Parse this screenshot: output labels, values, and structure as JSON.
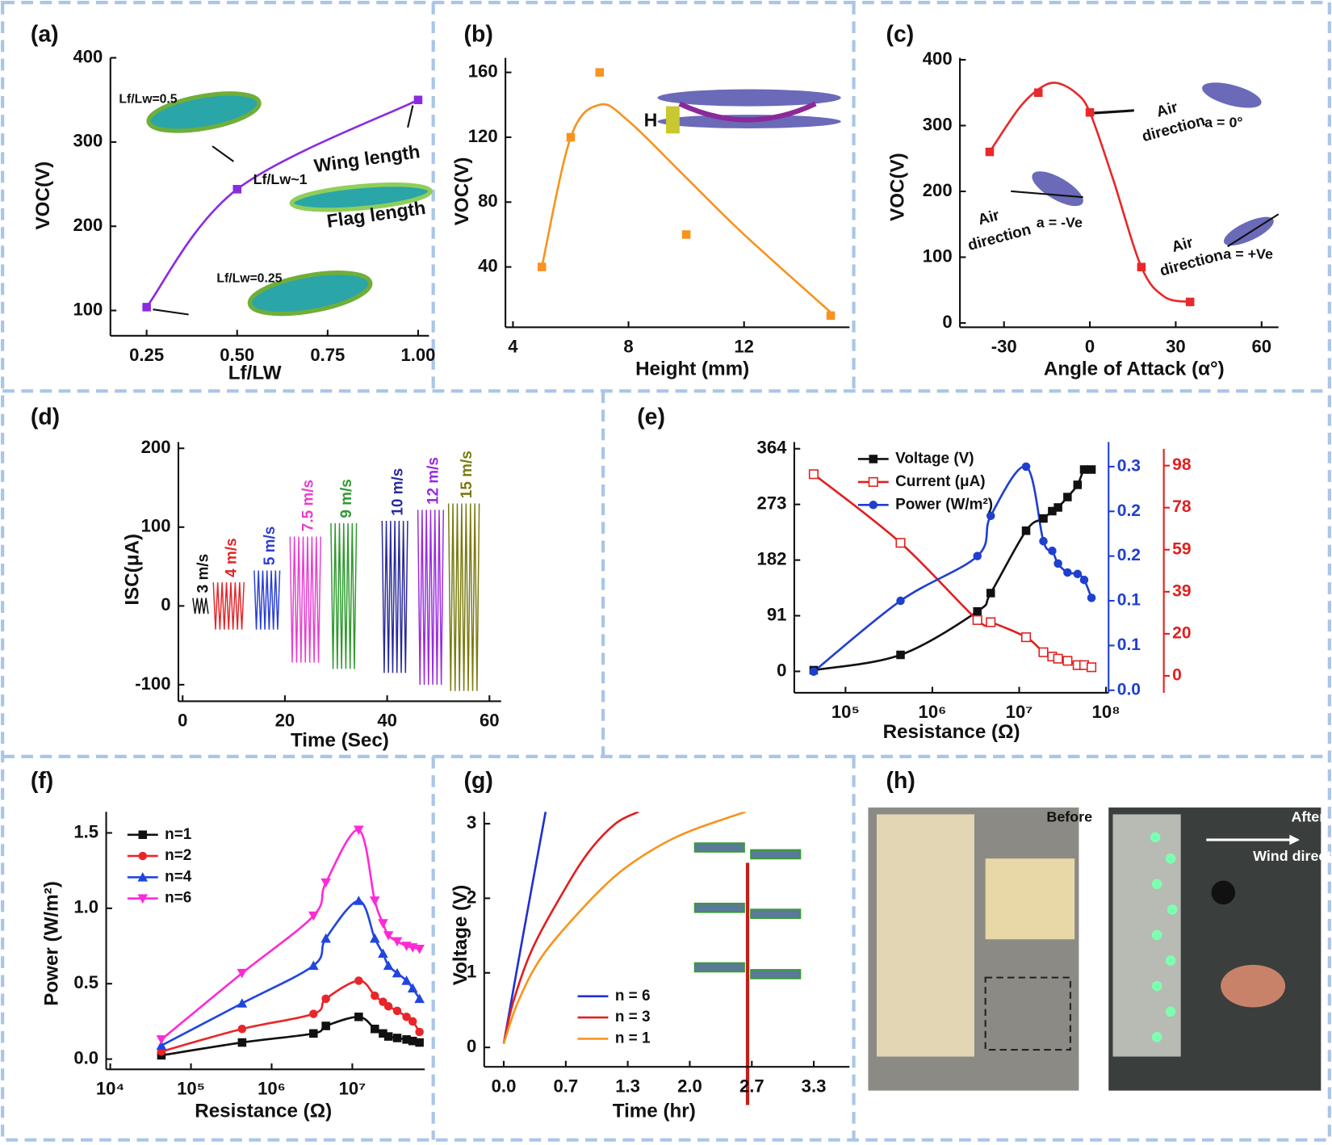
{
  "chart_data": [
    {
      "type": "scatter",
      "panel": "(a)",
      "smooth": true,
      "marker": "square",
      "color": "#8a2be2",
      "xlabel": "Lf/LW",
      "ylabel": "VOC(V)",
      "x": [
        0.25,
        0.5,
        1.0
      ],
      "values": [
        104,
        244,
        350
      ],
      "xlim": [
        0.15,
        1.03
      ],
      "ylim": [
        70,
        400
      ],
      "xticks": [
        0.25,
        {
          "value": 0.5,
          "label": "0.50"
        },
        0.75,
        {
          "value": 1,
          "label": "1.00"
        }
      ],
      "yticks": [
        100,
        200,
        300,
        400
      ],
      "annotations": [
        "Lf/Lw=0.5",
        "Lf/Lw~1",
        "Wing length",
        "Flag length",
        "Lf/Lw=0.25"
      ]
    },
    {
      "type": "scatter",
      "panel": "(b)",
      "marker": "square",
      "color": "#f7931e",
      "xlabel": "Height (mm)",
      "ylabel": "VOC(V)",
      "x": [
        5,
        6,
        7,
        10,
        15
      ],
      "values": [
        40,
        120,
        160,
        60,
        10
      ],
      "fit": {
        "x": [
          5,
          6,
          7,
          8,
          10,
          12,
          15
        ],
        "values": [
          40,
          120,
          140,
          130,
          95,
          60,
          12
        ]
      },
      "xlim": [
        3.74,
        15.65
      ],
      "ylim": [
        2.8,
        169
      ],
      "xticks": [
        4,
        8,
        12
      ],
      "yticks": [
        40,
        80,
        120,
        160
      ],
      "annotations": [
        "H"
      ]
    },
    {
      "type": "scatter",
      "panel": "(c)",
      "marker": "square",
      "color": "#e8282b",
      "xlabel": "Angle of Attack (α°)",
      "ylabel": "VOC(V)",
      "x": [
        -35,
        -18,
        0,
        18,
        35
      ],
      "values": [
        260,
        350,
        320,
        85,
        32
      ],
      "fit": {
        "x": [
          -35,
          -25,
          -18,
          -12,
          -5,
          0,
          8,
          18,
          26,
          35
        ],
        "values": [
          260,
          325,
          355,
          365,
          350,
          320,
          220,
          85,
          40,
          32
        ]
      },
      "xlim": [
        -45.4,
        65.9
      ],
      "ylim": [
        -6.5,
        403
      ],
      "xticks": [
        -30,
        0,
        30,
        60
      ],
      "yticks": [
        0,
        100,
        200,
        300,
        400
      ],
      "annotations": [
        "Air",
        "direction",
        "a = 0°",
        "Air",
        "direction",
        "a = -Ve",
        "Air",
        "direction",
        "a = +Ve"
      ]
    },
    {
      "type": "oscillation",
      "panel": "(d)",
      "xlabel": "Time (Sec)",
      "ylabel": "ISC(μA)",
      "xlim": [
        -0.83,
        62.3
      ],
      "ylim": [
        -121,
        208
      ],
      "xticks": [
        0,
        20,
        40,
        60
      ],
      "yticks": [
        -100,
        0,
        100,
        200
      ],
      "series": [
        {
          "name": "3 m/s",
          "color": "#111111",
          "x": [
            2,
            5
          ],
          "max": 10,
          "min": -10
        },
        {
          "name": "4 m/s",
          "color": "#e3262a",
          "x": [
            6,
            12
          ],
          "max": 30,
          "min": -30
        },
        {
          "name": "5 m/s",
          "color": "#2a3fd6",
          "x": [
            14,
            19
          ],
          "max": 45,
          "min": -30
        },
        {
          "name": "7.5 m/s",
          "color": "#e83fd0",
          "x": [
            21,
            27
          ],
          "max": 88,
          "min": -72
        },
        {
          "name": "9 m/s",
          "color": "#2f9a2f",
          "x": [
            29,
            34
          ],
          "max": 105,
          "min": -80
        },
        {
          "name": "10 m/s",
          "color": "#2a2a9a",
          "x": [
            39,
            44
          ],
          "max": 108,
          "min": -85
        },
        {
          "name": "12 m/s",
          "color": "#9a2ae0",
          "x": [
            46,
            51
          ],
          "max": 122,
          "min": -100
        },
        {
          "name": "15 m/s",
          "color": "#7a7a10",
          "x": [
            52,
            58
          ],
          "max": 130,
          "min": -108
        }
      ]
    },
    {
      "type": "line",
      "panel": "(e)",
      "xscale": "log",
      "xlabel": "Resistance (Ω)",
      "x": [
        43000,
        430000,
        3300000,
        4700000,
        12000000,
        19000000,
        24000000,
        28000000,
        36000000,
        47000000,
        56000000,
        68000000
      ],
      "xlim": [
        25700,
        107000000
      ],
      "ylim": [
        -35,
        375
      ],
      "y2lim": [
        -0.0034,
        0.333
      ],
      "y3lim": [
        -7.9,
        109
      ],
      "xticks": [
        {
          "value": 100000,
          "label": "10⁵"
        },
        {
          "value": 1000000,
          "label": "10⁶"
        },
        {
          "value": 10000000,
          "label": "10⁷"
        },
        {
          "value": 100000000,
          "label": "10⁸"
        }
      ],
      "yticks": [
        0,
        91,
        182,
        273,
        364
      ],
      "y2ticks": [
        {
          "value": 0,
          "label": "0.0"
        },
        {
          "value": 0.06,
          "label": "0.1"
        },
        {
          "value": 0.12,
          "label": "0.1"
        },
        {
          "value": 0.18,
          "label": "0.2"
        },
        {
          "value": 0.24,
          "label": "0.2"
        },
        0.3
      ],
      "y3ticks": [
        0,
        {
          "value": 19.6,
          "label": "20"
        },
        {
          "value": 39.2,
          "label": "39"
        },
        {
          "value": 58.8,
          "label": "59"
        },
        {
          "value": 78.4,
          "label": "78"
        },
        98
      ],
      "y2color": "#1f3fd0",
      "y3color": "#e02020",
      "series": [
        {
          "name": "Voltage (V)",
          "color": "#111111",
          "marker": "square",
          "values": [
            2,
            27,
            98,
            128,
            230,
            250,
            262,
            268,
            285,
            305,
            330,
            330
          ]
        },
        {
          "name": "Current (μA)",
          "color": "#e02020",
          "marker": "open-square",
          "axis": "y3",
          "values": [
            94,
            62,
            26,
            25,
            18,
            11,
            9,
            8,
            7,
            5,
            5,
            4
          ]
        },
        {
          "name": "Power (W/m²)",
          "color": "#1f3fd0",
          "marker": "circle",
          "axis": "y2",
          "values": [
            0.025,
            0.12,
            0.18,
            0.234,
            0.3,
            0.2,
            0.187,
            0.17,
            0.158,
            0.156,
            0.148,
            0.124
          ]
        }
      ]
    },
    {
      "type": "line",
      "panel": "(f)",
      "xscale": "log",
      "xlabel": "Resistance (Ω)",
      "ylabel": "Power (W/m²)",
      "x": [
        43000,
        430000,
        3300000,
        4700000,
        12000000,
        19000000,
        24000000,
        28000000,
        36000000,
        47000000,
        56000000,
        68000000
      ],
      "xlim": [
        8900,
        79000000
      ],
      "ylim": [
        -0.068,
        1.64
      ],
      "xticks": [
        {
          "value": 10000,
          "label": "10⁴"
        },
        {
          "value": 100000,
          "label": "10⁵"
        },
        {
          "value": 1000000,
          "label": "10⁶"
        },
        {
          "value": 10000000,
          "label": "10⁷"
        }
      ],
      "yticks": [
        {
          "value": 0,
          "label": "0.0"
        },
        0.5,
        {
          "value": 1,
          "label": "1.0"
        },
        1.5
      ],
      "series": [
        {
          "name": "n=1",
          "color": "#111111",
          "marker": "square",
          "values": [
            0.025,
            0.11,
            0.17,
            0.22,
            0.28,
            0.2,
            0.17,
            0.15,
            0.14,
            0.13,
            0.12,
            0.11
          ]
        },
        {
          "name": "n=2",
          "color": "#e8262a",
          "marker": "circle",
          "values": [
            0.05,
            0.2,
            0.3,
            0.4,
            0.52,
            0.42,
            0.38,
            0.35,
            0.32,
            0.28,
            0.25,
            0.18
          ]
        },
        {
          "name": "n=4",
          "color": "#2046e0",
          "marker": "triangle-up",
          "values": [
            0.09,
            0.37,
            0.62,
            0.8,
            1.05,
            0.8,
            0.7,
            0.62,
            0.57,
            0.52,
            0.47,
            0.4
          ]
        },
        {
          "name": "n=6",
          "color": "#ff2ad4",
          "marker": "triangle-down",
          "values": [
            0.13,
            0.57,
            0.95,
            1.17,
            1.52,
            1.05,
            0.9,
            0.82,
            0.78,
            0.75,
            0.74,
            0.73
          ]
        }
      ]
    },
    {
      "type": "line",
      "panel": "(g)",
      "xlabel": "Time (hr)",
      "ylabel": "Voltage (V)",
      "xlim": [
        -0.21,
        3.717
      ],
      "ylim": [
        -0.26,
        3.16
      ],
      "xticks": [
        {
          "value": 0,
          "label": "0.0"
        },
        {
          "value": 0.667,
          "label": "0.7"
        },
        {
          "value": 1.333,
          "label": "1.3"
        },
        {
          "value": 2,
          "label": "2.0"
        },
        {
          "value": 2.667,
          "label": "2.7"
        },
        {
          "value": 3.333,
          "label": "3.3"
        }
      ],
      "yticks": [
        0,
        1,
        2,
        3
      ],
      "series": [
        {
          "name": "n = 6",
          "color": "#2030d0",
          "x": [
            0,
            0.2,
            0.45
          ],
          "values": [
            0.05,
            1.45,
            3.16
          ]
        },
        {
          "name": "n = 3",
          "color": "#e02020",
          "x": [
            0,
            0.1,
            0.3,
            0.6,
            0.9,
            1.2,
            1.45
          ],
          "values": [
            0.05,
            0.6,
            1.3,
            2.0,
            2.6,
            3.0,
            3.16
          ]
        },
        {
          "name": "n = 1",
          "color": "#f7941d",
          "x": [
            0,
            0.15,
            0.4,
            0.8,
            1.2,
            1.6,
            2.0,
            2.6
          ],
          "values": [
            0.05,
            0.6,
            1.2,
            1.8,
            2.3,
            2.65,
            2.9,
            3.16
          ]
        }
      ]
    },
    {
      "type": "image",
      "panel": "(h)",
      "annotations": [
        "Before",
        "After",
        "Wind direction"
      ]
    }
  ]
}
